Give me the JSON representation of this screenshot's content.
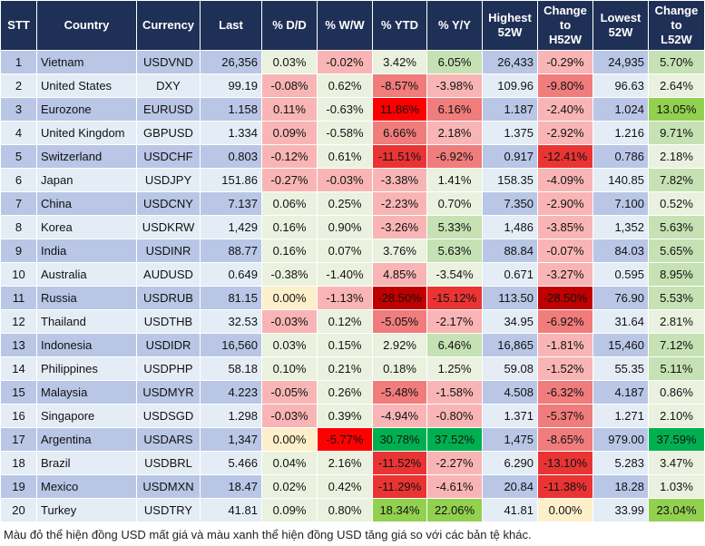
{
  "headers": {
    "stt": "STT",
    "country": "Country",
    "currency": "Currency",
    "last": "Last",
    "dd": "% D/D",
    "ww": "% W/W",
    "ytd": "% YTD",
    "yy": "% Y/Y",
    "h52": [
      "Highest",
      "52W"
    ],
    "chh": [
      "Change",
      "to",
      "H52W"
    ],
    "l52": [
      "Lowest",
      "52W"
    ],
    "chl": [
      "Change",
      "to",
      "L52W"
    ]
  },
  "rows": [
    {
      "stt": "1",
      "country": "Vietnam",
      "currency": "USDVND",
      "last": "26,356",
      "dd": "0.03%",
      "ww": "-0.02%",
      "ytd": "3.42%",
      "yy": "6.05%",
      "h52": "26,433",
      "chh": "-0.29%",
      "l52": "24,935",
      "chl": "5.70%",
      "colors": {
        "dd": "neutral",
        "ww": "r1",
        "ytd": "neutral",
        "yy": "g1",
        "chh": "r1",
        "chl": "g1"
      }
    },
    {
      "stt": "2",
      "country": "United States",
      "currency": "DXY",
      "last": "99.19",
      "dd": "-0.08%",
      "ww": "0.62%",
      "ytd": "-8.57%",
      "yy": "-3.98%",
      "h52": "109.96",
      "chh": "-9.80%",
      "l52": "96.63",
      "chl": "2.64%",
      "colors": {
        "dd": "r1",
        "ww": "neutral",
        "ytd": "r2",
        "yy": "r1",
        "chh": "r2",
        "chl": "neutral"
      }
    },
    {
      "stt": "3",
      "country": "Eurozone",
      "currency": "EURUSD",
      "last": "1.158",
      "dd": "0.11%",
      "ww": "-0.63%",
      "ytd": "11.86%",
      "yy": "6.16%",
      "h52": "1.187",
      "chh": "-2.40%",
      "l52": "1.024",
      "chl": "13.05%",
      "colors": {
        "dd": "r1",
        "ww": "neutral",
        "ytd": "r4",
        "yy": "r2",
        "chh": "r1",
        "chl": "g2"
      }
    },
    {
      "stt": "4",
      "country": "United Kingdom",
      "currency": "GBPUSD",
      "last": "1.334",
      "dd": "0.09%",
      "ww": "-0.58%",
      "ytd": "6.66%",
      "yy": "2.18%",
      "h52": "1.375",
      "chh": "-2.92%",
      "l52": "1.216",
      "chl": "9.71%",
      "colors": {
        "dd": "r1",
        "ww": "neutral",
        "ytd": "r2",
        "yy": "r1",
        "chh": "r1",
        "chl": "g1"
      }
    },
    {
      "stt": "5",
      "country": "Switzerland",
      "currency": "USDCHF",
      "last": "0.803",
      "dd": "-0.12%",
      "ww": "0.61%",
      "ytd": "-11.51%",
      "yy": "-6.92%",
      "h52": "0.917",
      "chh": "-12.41%",
      "l52": "0.786",
      "chl": "2.18%",
      "colors": {
        "dd": "r1",
        "ww": "neutral",
        "ytd": "r3",
        "yy": "r2",
        "chh": "r3",
        "chl": "neutral"
      }
    },
    {
      "stt": "6",
      "country": "Japan",
      "currency": "USDJPY",
      "last": "151.86",
      "dd": "-0.27%",
      "ww": "-0.03%",
      "ytd": "-3.38%",
      "yy": "1.41%",
      "h52": "158.35",
      "chh": "-4.09%",
      "l52": "140.85",
      "chl": "7.82%",
      "colors": {
        "dd": "r1",
        "ww": "r1",
        "ytd": "r1",
        "yy": "neutral",
        "chh": "r1",
        "chl": "g1"
      }
    },
    {
      "stt": "7",
      "country": "China",
      "currency": "USDCNY",
      "last": "7.137",
      "dd": "0.06%",
      "ww": "0.25%",
      "ytd": "-2.23%",
      "yy": "0.70%",
      "h52": "7.350",
      "chh": "-2.90%",
      "l52": "7.100",
      "chl": "0.52%",
      "colors": {
        "dd": "neutral",
        "ww": "neutral",
        "ytd": "r1",
        "yy": "neutral",
        "chh": "r1",
        "chl": "neutral"
      }
    },
    {
      "stt": "8",
      "country": "Korea",
      "currency": "USDKRW",
      "last": "1,429",
      "dd": "0.16%",
      "ww": "0.90%",
      "ytd": "-3.26%",
      "yy": "5.33%",
      "h52": "1,486",
      "chh": "-3.85%",
      "l52": "1,352",
      "chl": "5.63%",
      "colors": {
        "dd": "neutral",
        "ww": "neutral",
        "ytd": "r1",
        "yy": "g1",
        "chh": "r1",
        "chl": "g1"
      }
    },
    {
      "stt": "9",
      "country": "India",
      "currency": "USDINR",
      "last": "88.77",
      "dd": "0.16%",
      "ww": "0.07%",
      "ytd": "3.76%",
      "yy": "5.63%",
      "h52": "88.84",
      "chh": "-0.07%",
      "l52": "84.03",
      "chl": "5.65%",
      "colors": {
        "dd": "neutral",
        "ww": "neutral",
        "ytd": "neutral",
        "yy": "g1",
        "chh": "r1",
        "chl": "g1"
      }
    },
    {
      "stt": "10",
      "country": "Australia",
      "currency": "AUDUSD",
      "last": "0.649",
      "dd": "-0.38%",
      "ww": "-1.40%",
      "ytd": "4.85%",
      "yy": "-3.54%",
      "h52": "0.671",
      "chh": "-3.27%",
      "l52": "0.595",
      "chl": "8.95%",
      "colors": {
        "dd": "neutral",
        "ww": "neutral",
        "ytd": "r1",
        "yy": "neutral",
        "chh": "r1",
        "chl": "g1"
      }
    },
    {
      "stt": "11",
      "country": "Russia",
      "currency": "USDRUB",
      "last": "81.15",
      "dd": "0.00%",
      "ww": "-1.13%",
      "ytd": "-28.50%",
      "yy": "-15.12%",
      "h52": "113.50",
      "chh": "-28.50%",
      "l52": "76.90",
      "chl": "5.53%",
      "colors": {
        "dd": "zero",
        "ww": "r1",
        "ytd": "r5",
        "yy": "r3",
        "chh": "r5",
        "chl": "g1"
      }
    },
    {
      "stt": "12",
      "country": "Thailand",
      "currency": "USDTHB",
      "last": "32.53",
      "dd": "-0.03%",
      "ww": "0.12%",
      "ytd": "-5.05%",
      "yy": "-2.17%",
      "h52": "34.95",
      "chh": "-6.92%",
      "l52": "31.64",
      "chl": "2.81%",
      "colors": {
        "dd": "r1",
        "ww": "neutral",
        "ytd": "r2",
        "yy": "r1",
        "chh": "r2",
        "chl": "neutral"
      }
    },
    {
      "stt": "13",
      "country": "Indonesia",
      "currency": "USDIDR",
      "last": "16,560",
      "dd": "0.03%",
      "ww": "0.15%",
      "ytd": "2.92%",
      "yy": "6.46%",
      "h52": "16,865",
      "chh": "-1.81%",
      "l52": "15,460",
      "chl": "7.12%",
      "colors": {
        "dd": "neutral",
        "ww": "neutral",
        "ytd": "neutral",
        "yy": "g1",
        "chh": "r1",
        "chl": "g1"
      }
    },
    {
      "stt": "14",
      "country": "Philippines",
      "currency": "USDPHP",
      "last": "58.18",
      "dd": "0.10%",
      "ww": "0.21%",
      "ytd": "0.18%",
      "yy": "1.25%",
      "h52": "59.08",
      "chh": "-1.52%",
      "l52": "55.35",
      "chl": "5.11%",
      "colors": {
        "dd": "neutral",
        "ww": "neutral",
        "ytd": "neutral",
        "yy": "neutral",
        "chh": "r1",
        "chl": "g1"
      }
    },
    {
      "stt": "15",
      "country": "Malaysia",
      "currency": "USDMYR",
      "last": "4.223",
      "dd": "-0.05%",
      "ww": "0.26%",
      "ytd": "-5.48%",
      "yy": "-1.58%",
      "h52": "4.508",
      "chh": "-6.32%",
      "l52": "4.187",
      "chl": "0.86%",
      "colors": {
        "dd": "r1",
        "ww": "neutral",
        "ytd": "r2",
        "yy": "r1",
        "chh": "r2",
        "chl": "neutral"
      }
    },
    {
      "stt": "16",
      "country": "Singapore",
      "currency": "USDSGD",
      "last": "1.298",
      "dd": "-0.03%",
      "ww": "0.39%",
      "ytd": "-4.94%",
      "yy": "-0.80%",
      "h52": "1.371",
      "chh": "-5.37%",
      "l52": "1.271",
      "chl": "2.10%",
      "colors": {
        "dd": "r1",
        "ww": "neutral",
        "ytd": "r1",
        "yy": "r1",
        "chh": "r2",
        "chl": "neutral"
      }
    },
    {
      "stt": "17",
      "country": "Argentina",
      "currency": "USDARS",
      "last": "1,347",
      "dd": "0.00%",
      "ww": "-5.77%",
      "ytd": "30.78%",
      "yy": "37.52%",
      "h52": "1,475",
      "chh": "-8.65%",
      "l52": "979.00",
      "chl": "37.59%",
      "colors": {
        "dd": "zero",
        "ww": "r4",
        "ytd": "g3",
        "yy": "g3",
        "chh": "r2",
        "chl": "g3"
      }
    },
    {
      "stt": "18",
      "country": "Brazil",
      "currency": "USDBRL",
      "last": "5.466",
      "dd": "0.04%",
      "ww": "2.16%",
      "ytd": "-11.52%",
      "yy": "-2.27%",
      "h52": "6.290",
      "chh": "-13.10%",
      "l52": "5.283",
      "chl": "3.47%",
      "colors": {
        "dd": "neutral",
        "ww": "neutral",
        "ytd": "r3",
        "yy": "r1",
        "chh": "r3",
        "chl": "neutral"
      }
    },
    {
      "stt": "19",
      "country": "Mexico",
      "currency": "USDMXN",
      "last": "18.47",
      "dd": "0.02%",
      "ww": "0.42%",
      "ytd": "-11.29%",
      "yy": "-4.61%",
      "h52": "20.84",
      "chh": "-11.38%",
      "l52": "18.28",
      "chl": "1.03%",
      "colors": {
        "dd": "neutral",
        "ww": "neutral",
        "ytd": "r3",
        "yy": "r1",
        "chh": "r3",
        "chl": "neutral"
      }
    },
    {
      "stt": "20",
      "country": "Turkey",
      "currency": "USDTRY",
      "last": "41.81",
      "dd": "0.09%",
      "ww": "0.80%",
      "ytd": "18.34%",
      "yy": "22.06%",
      "h52": "41.81",
      "chh": "0.00%",
      "l52": "33.99",
      "chl": "23.04%",
      "colors": {
        "dd": "neutral",
        "ww": "neutral",
        "ytd": "g2",
        "yy": "g2",
        "chh": "zero",
        "chl": "g2"
      }
    }
  ],
  "footnote": "Màu đỏ thể hiện đồng USD mất giá và màu xanh thể hiện đồng USD tăng giá so với các bản tệ khác.",
  "palette": {
    "header_bg": "#1f3056",
    "row_odd": "#b9c6e6",
    "row_even": "#e4edf6",
    "red_strong": "#c00000",
    "green_strong": "#00b050"
  }
}
